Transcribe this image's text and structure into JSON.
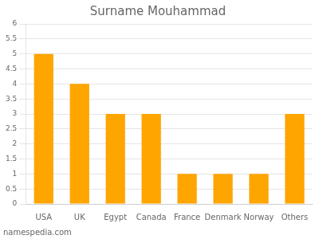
{
  "chart_data": {
    "type": "bar",
    "title": "Surname Mouhammad",
    "annotations": [
      "namespedia.com"
    ],
    "categories": [
      "USA",
      "UK",
      "Egypt",
      "Canada",
      "France",
      "Denmark",
      "Norway",
      "Others"
    ],
    "values": [
      5,
      4,
      3,
      3,
      1,
      1,
      1,
      3
    ],
    "color": "#FFA500",
    "ylim": [
      0,
      6
    ],
    "yticks": [
      0,
      0.5,
      1,
      1.5,
      2,
      2.5,
      3,
      3.5,
      4,
      4.5,
      5,
      5.5,
      6
    ],
    "grid": true
  }
}
